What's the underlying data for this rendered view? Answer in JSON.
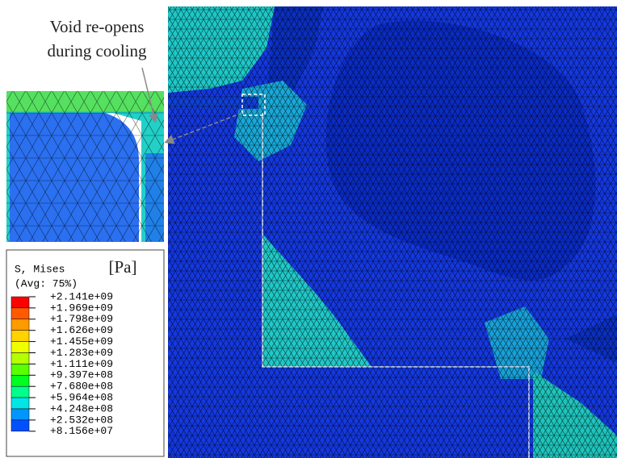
{
  "annotation": {
    "lines": [
      "Void re-opens",
      "during cooling"
    ]
  },
  "legend": {
    "title": "S, Mises",
    "subtitle": "(Avg: 75%)",
    "unit": "[Pa]",
    "labels": [
      "+2.141e+09",
      "+1.969e+09",
      "+1.798e+09",
      "+1.626e+09",
      "+1.455e+09",
      "+1.283e+09",
      "+1.111e+09",
      "+9.397e+08",
      "+7.680e+08",
      "+5.964e+08",
      "+4.248e+08",
      "+2.532e+08",
      "+8.156e+07"
    ],
    "colors": [
      "#ff0000",
      "#ff5a00",
      "#ff9a00",
      "#ffd200",
      "#f0ff00",
      "#b4ff00",
      "#5aff00",
      "#00ff1e",
      "#00ff8c",
      "#00e6e6",
      "#0096ff",
      "#0050ff",
      "#0000ff"
    ]
  }
}
